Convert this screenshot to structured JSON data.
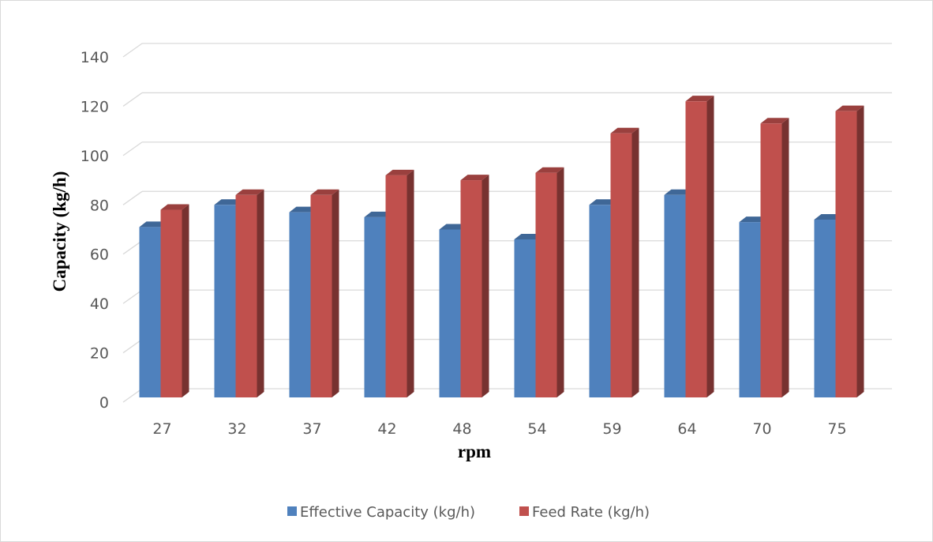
{
  "chart_data": {
    "type": "bar",
    "title": "",
    "xlabel": "rpm",
    "ylabel": "Capacity (kg/h)",
    "categories": [
      "27",
      "32",
      "37",
      "42",
      "48",
      "54",
      "59",
      "64",
      "70",
      "75"
    ],
    "series": [
      {
        "name": "Effective Capacity (kg/h)",
        "color": "#4f81bd",
        "values": [
          71,
          80,
          77,
          75,
          70,
          66,
          80,
          84,
          73,
          74
        ]
      },
      {
        "name": "Feed Rate (kg/h)",
        "color": "#c0504d",
        "values": [
          78,
          84,
          84,
          92,
          90,
          93,
          109,
          122,
          113,
          118
        ]
      }
    ],
    "ylim": [
      0,
      140
    ],
    "yticks": [
      0,
      20,
      40,
      60,
      80,
      100,
      120,
      140
    ],
    "grid": true,
    "legend_position": "bottom",
    "style": "3d-column"
  }
}
